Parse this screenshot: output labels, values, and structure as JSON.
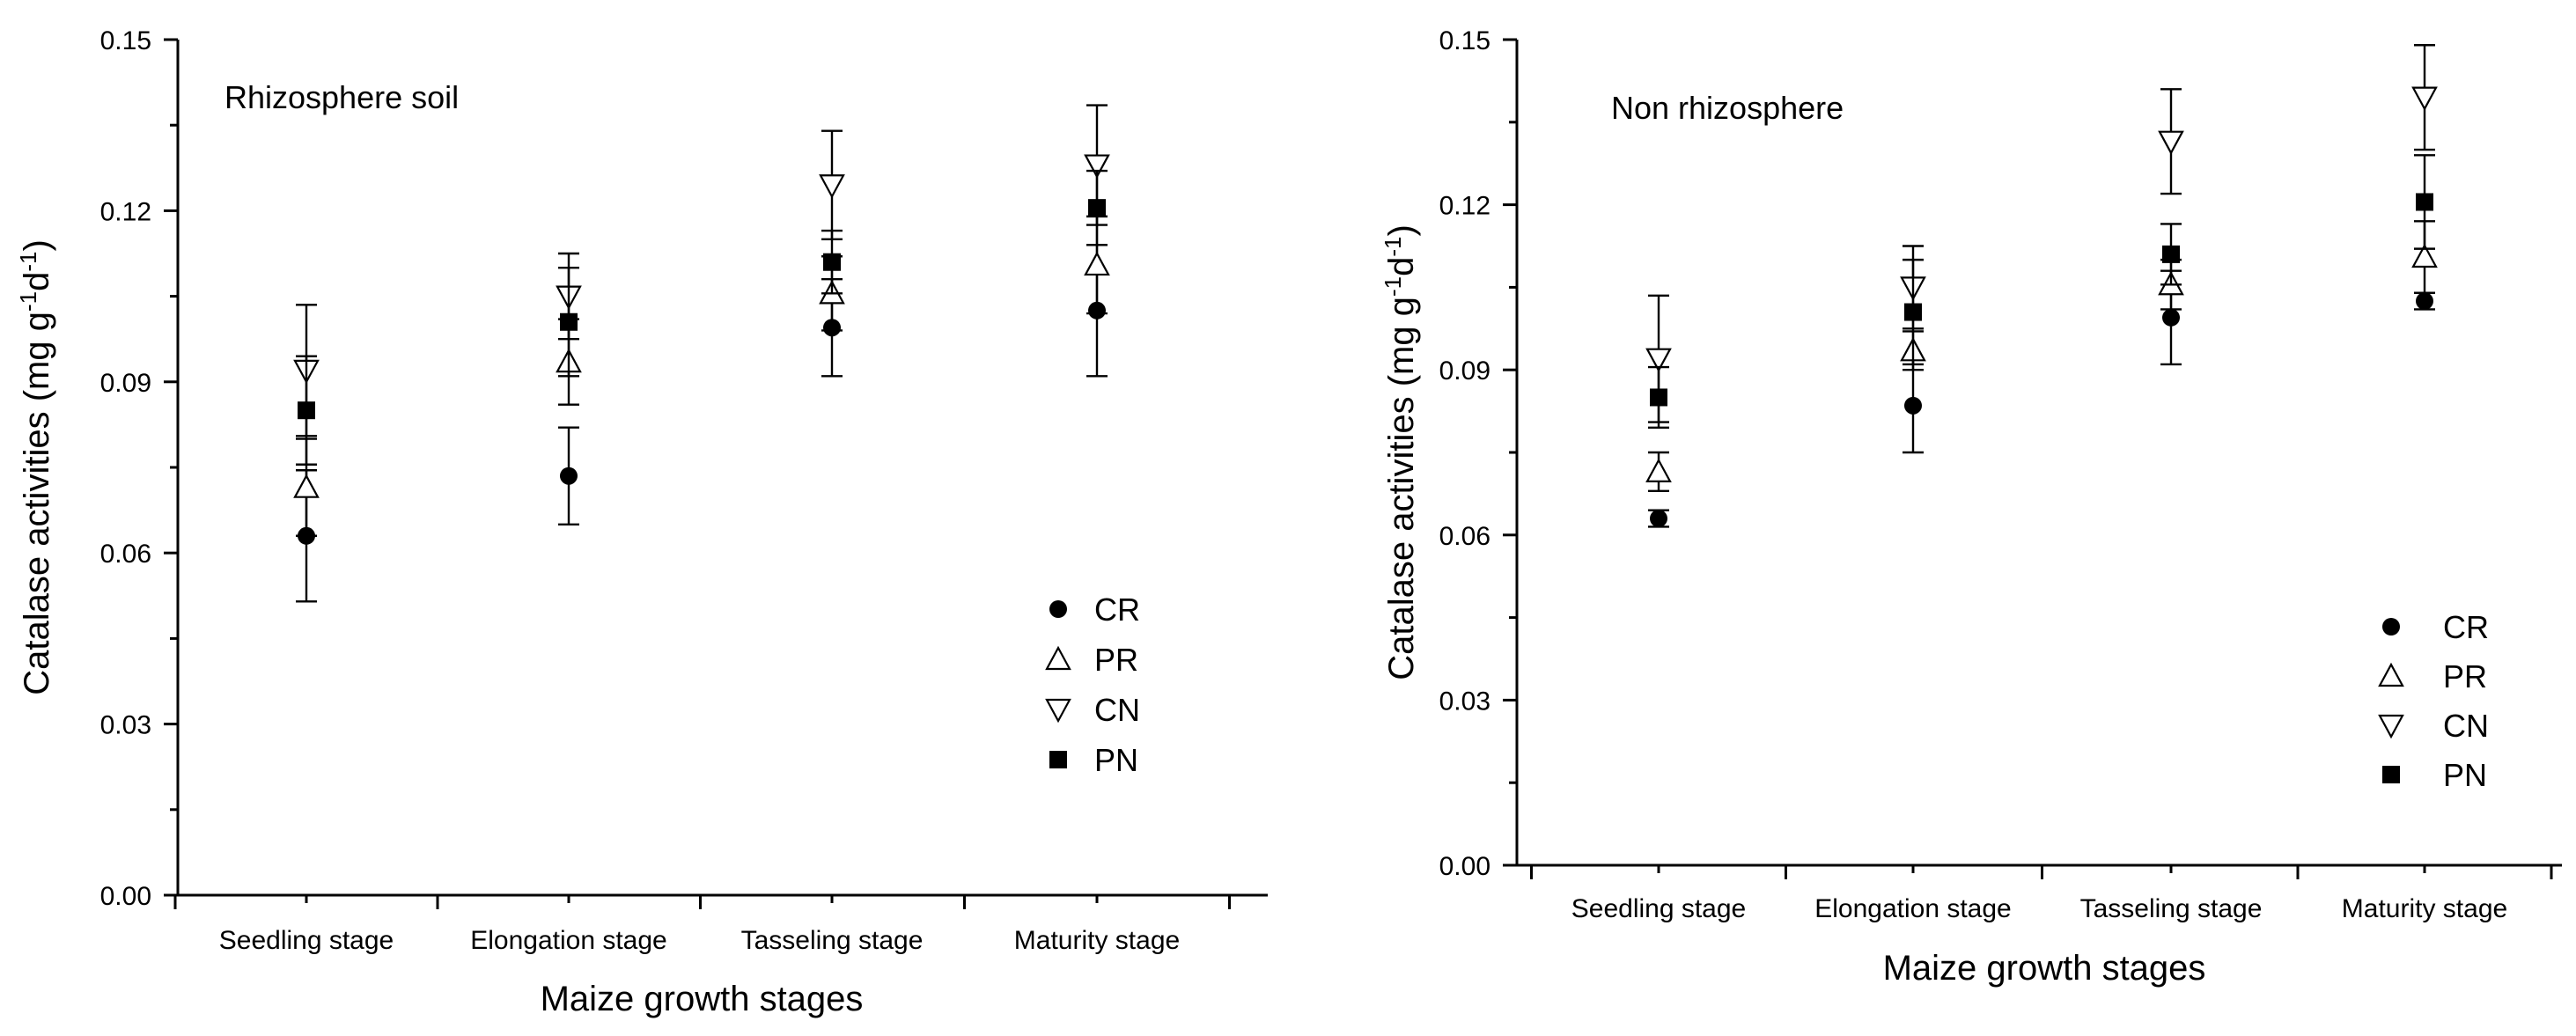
{
  "chart_data": [
    {
      "type": "scatter",
      "title": "Rhizosphere soil",
      "xlabel": "Maize growth stages",
      "ylabel_main": "Catalase activities (mg g",
      "ylabel_sup1": "-1",
      "ylabel_mid": "d",
      "ylabel_sup2": "-1",
      "ylabel_end": ")",
      "ylim": [
        0,
        0.15
      ],
      "yticks": [
        "0.00",
        "0.03",
        "0.06",
        "0.09",
        "0.12",
        "0.15"
      ],
      "categories": [
        "Seedling stage",
        "Elongation stage",
        "Tasseling stage",
        "Maturity stage"
      ],
      "legend_position": "bottom-right",
      "series": [
        {
          "name": "CR",
          "marker": "circle",
          "values": [
            0.063,
            0.0735,
            0.0995,
            0.1025
          ],
          "errors": [
            0.0115,
            0.0085,
            0.0085,
            0.0115
          ]
        },
        {
          "name": "PR",
          "marker": "triangle-up",
          "values": [
            0.0715,
            0.0935,
            0.1055,
            0.1105
          ],
          "errors": [
            0.0085,
            0.0075,
            0.0065,
            0.0085
          ]
        },
        {
          "name": "CN",
          "marker": "triangle-down",
          "values": [
            0.092,
            0.105,
            0.1245,
            0.128
          ],
          "errors": [
            0.0115,
            0.0075,
            0.0095,
            0.0105
          ]
        },
        {
          "name": "PN",
          "marker": "square",
          "values": [
            0.085,
            0.1005,
            0.111,
            0.1205
          ],
          "errors": [
            0.0095,
            0.0095,
            0.0055,
            0.0065
          ]
        }
      ]
    },
    {
      "type": "scatter",
      "title": "Non rhizosphere",
      "xlabel": "Maize growth stages",
      "ylabel_main": "Catalase activities (mg g",
      "ylabel_sup1": "-1",
      "ylabel_mid": "d",
      "ylabel_sup2": "-1",
      "ylabel_end": ")",
      "ylim": [
        0,
        0.15
      ],
      "yticks": [
        "0.00",
        "0.03",
        "0.06",
        "0.09",
        "0.12",
        "0.15"
      ],
      "categories": [
        "Seedling stage",
        "Elongation stage",
        "Tasseling stage",
        "Maturity stage"
      ],
      "legend_position": "bottom-right",
      "series": [
        {
          "name": "CR",
          "marker": "circle",
          "values": [
            0.063,
            0.0835,
            0.0995,
            0.1025
          ],
          "errors": [
            0.0015,
            0.0085,
            0.0085,
            0.0015
          ]
        },
        {
          "name": "PR",
          "marker": "triangle-up",
          "values": [
            0.0715,
            0.0935,
            0.1055,
            0.1105
          ],
          "errors": [
            0.0035,
            0.0035,
            0.0045,
            0.0065
          ]
        },
        {
          "name": "CN",
          "marker": "triangle-down",
          "values": [
            0.092,
            0.105,
            0.1315,
            0.1395
          ],
          "errors": [
            0.0115,
            0.0075,
            0.0095,
            0.0095
          ]
        },
        {
          "name": "PN",
          "marker": "square",
          "values": [
            0.085,
            0.1005,
            0.111,
            0.1205
          ],
          "errors": [
            0.0055,
            0.0095,
            0.0055,
            0.0085
          ]
        }
      ]
    }
  ]
}
